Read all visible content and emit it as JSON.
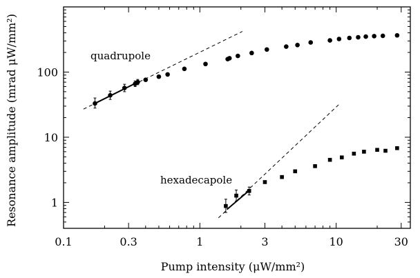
{
  "chart_data": {
    "type": "scatter",
    "title": "",
    "xlabel": "Pump intensity (μW/mm²)",
    "ylabel": "Resonance amplitude (mrad μW/mm²)",
    "xscale": "log",
    "yscale": "log",
    "xlim": [
      0.1,
      35
    ],
    "ylim": [
      0.4,
      1000
    ],
    "grid": false,
    "x_ticks": [
      {
        "value": 0.1,
        "label": "0.1"
      },
      {
        "value": 0.3,
        "label": "0.3"
      },
      {
        "value": 1,
        "label": "1"
      },
      {
        "value": 3,
        "label": "3"
      },
      {
        "value": 10,
        "label": "10"
      },
      {
        "value": 30,
        "label": "30"
      }
    ],
    "y_ticks": [
      {
        "value": 1,
        "label": "1"
      },
      {
        "value": 10,
        "label": "10"
      },
      {
        "value": 100,
        "label": "100"
      }
    ],
    "series": [
      {
        "name": "quadrupole",
        "marker": "circle",
        "points": [
          {
            "x": 0.17,
            "y": 33,
            "yerr_low": 28,
            "yerr_high": 40
          },
          {
            "x": 0.22,
            "y": 44,
            "yerr_low": 38,
            "yerr_high": 51
          },
          {
            "x": 0.28,
            "y": 57,
            "yerr_low": 50,
            "yerr_high": 65
          },
          {
            "x": 0.335,
            "y": 66,
            "yerr_low": 60,
            "yerr_high": 73
          },
          {
            "x": 0.35,
            "y": 70,
            "yerr_low": 64,
            "yerr_high": 77
          },
          {
            "x": 0.4,
            "y": 76
          },
          {
            "x": 0.5,
            "y": 85
          },
          {
            "x": 0.58,
            "y": 92
          },
          {
            "x": 0.77,
            "y": 112
          },
          {
            "x": 1.1,
            "y": 133
          },
          {
            "x": 1.6,
            "y": 158
          },
          {
            "x": 1.65,
            "y": 163
          },
          {
            "x": 1.9,
            "y": 177
          },
          {
            "x": 2.4,
            "y": 196
          },
          {
            "x": 3.1,
            "y": 222
          },
          {
            "x": 4.3,
            "y": 246
          },
          {
            "x": 5.2,
            "y": 260
          },
          {
            "x": 6.5,
            "y": 285
          },
          {
            "x": 9.0,
            "y": 306
          },
          {
            "x": 10.5,
            "y": 322
          },
          {
            "x": 12.5,
            "y": 334
          },
          {
            "x": 14.5,
            "y": 342
          },
          {
            "x": 16.5,
            "y": 350
          },
          {
            "x": 19.0,
            "y": 356
          },
          {
            "x": 22.0,
            "y": 360
          },
          {
            "x": 28.0,
            "y": 366
          }
        ],
        "fit_solid": {
          "x": [
            0.17,
            0.35
          ],
          "y": [
            33,
            70
          ]
        },
        "fit_dashed": {
          "x": [
            0.14,
            2.05
          ],
          "y": [
            27,
            420
          ]
        }
      },
      {
        "name": "hexadecapole",
        "marker": "square",
        "points": [
          {
            "x": 1.55,
            "y": 0.88,
            "yerr_low": 0.7,
            "yerr_high": 1.12
          },
          {
            "x": 1.85,
            "y": 1.27,
            "yerr_low": 1.05,
            "yerr_high": 1.55
          },
          {
            "x": 2.3,
            "y": 1.5,
            "yerr_low": 1.3,
            "yerr_high": 1.72
          },
          {
            "x": 3.0,
            "y": 2.05
          },
          {
            "x": 4.0,
            "y": 2.45
          },
          {
            "x": 5.0,
            "y": 3.0
          },
          {
            "x": 7.0,
            "y": 3.6
          },
          {
            "x": 9.0,
            "y": 4.5
          },
          {
            "x": 11.0,
            "y": 4.9
          },
          {
            "x": 13.5,
            "y": 5.6
          },
          {
            "x": 16.0,
            "y": 6.0
          },
          {
            "x": 20.0,
            "y": 6.4
          },
          {
            "x": 23.0,
            "y": 6.2
          },
          {
            "x": 28.0,
            "y": 6.8
          }
        ],
        "fit_solid": {
          "x": [
            1.58,
            2.35
          ],
          "y": [
            0.78,
            1.58
          ]
        },
        "fit_dashed": {
          "x": [
            1.37,
            10.5
          ],
          "y": [
            0.58,
            32
          ]
        }
      }
    ]
  }
}
